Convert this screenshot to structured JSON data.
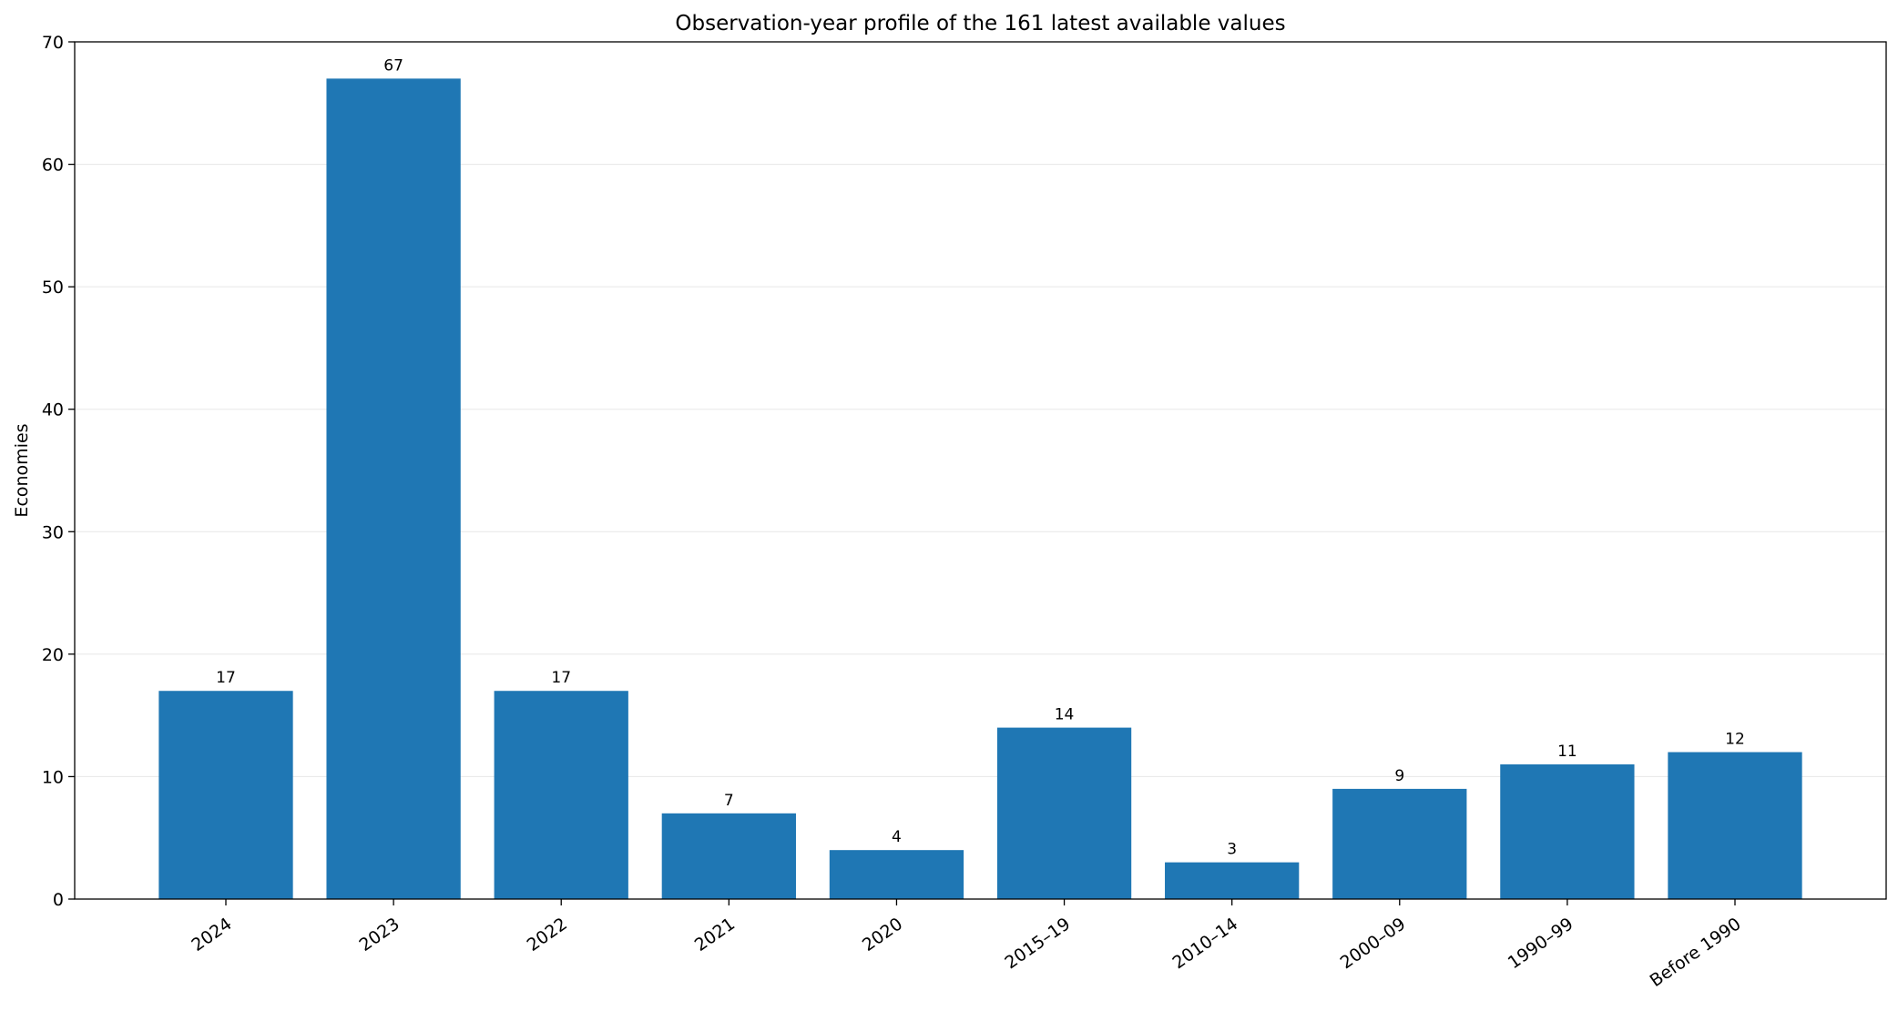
{
  "chart_data": {
    "type": "bar",
    "title": "Observation-year profile of the 161 latest available values",
    "xlabel": "",
    "ylabel": "Economies",
    "categories": [
      "2024",
      "2023",
      "2022",
      "2021",
      "2020",
      "2015–19",
      "2010–14",
      "2000–09",
      "1990–99",
      "Before 1990"
    ],
    "values": [
      17,
      67,
      17,
      7,
      4,
      14,
      3,
      9,
      11,
      12
    ],
    "data_labels": [
      "17",
      "67",
      "17",
      "7",
      "4",
      "14",
      "3",
      "9",
      "11",
      "12"
    ],
    "ylim": [
      0,
      70
    ],
    "yticks": [
      0,
      10,
      20,
      30,
      40,
      50,
      60,
      70
    ],
    "ytick_labels": [
      "0",
      "10",
      "20",
      "30",
      "40",
      "50",
      "60",
      "70"
    ],
    "grid": "y",
    "bar_color": "#1f77b4",
    "xtick_rotation_deg": 35
  }
}
